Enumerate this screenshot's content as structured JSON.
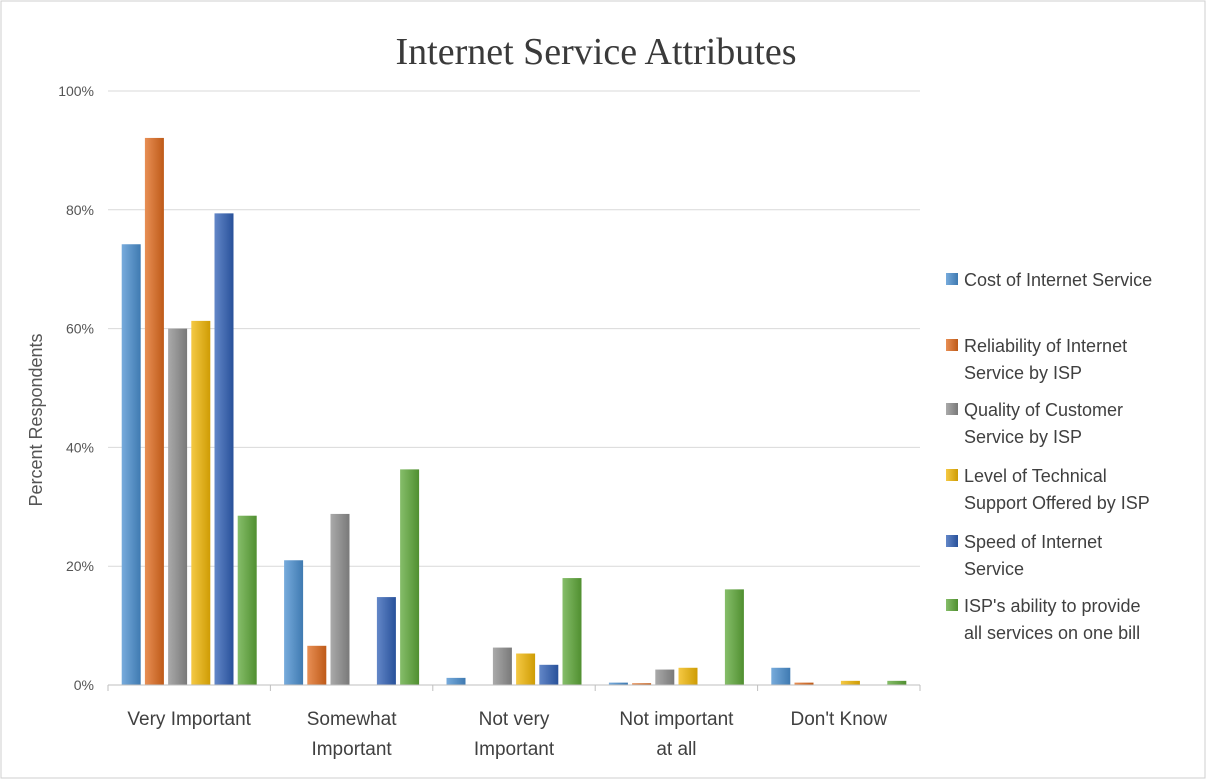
{
  "chart_data": {
    "type": "bar",
    "title": "Internet Service Attributes",
    "xlabel": "",
    "ylabel": "Percent Respondents",
    "ylim": [
      0,
      100
    ],
    "yticks": [
      "0%",
      "20%",
      "40%",
      "60%",
      "80%",
      "100%"
    ],
    "categories": [
      [
        "Very Important"
      ],
      [
        "Somewhat",
        "Important"
      ],
      [
        "Not very",
        "Important"
      ],
      [
        "Not important",
        "at all"
      ],
      [
        "Don't Know"
      ]
    ],
    "series": [
      {
        "name": [
          "Cost of Internet Service"
        ],
        "color": "#4a8fd0",
        "values": [
          74.2,
          21.0,
          1.2,
          0.4,
          2.9
        ]
      },
      {
        "name": [
          "Reliability of Internet",
          "Service by ISP"
        ],
        "color": "#e06a1c",
        "values": [
          92.1,
          6.6,
          0.0,
          0.3,
          0.4
        ]
      },
      {
        "name": [
          "Quality of Customer",
          "Service by ISP"
        ],
        "color": "#8e8e8e",
        "values": [
          60.0,
          28.8,
          6.3,
          2.6,
          0.0
        ]
      },
      {
        "name": [
          "Level of Technical",
          "Support Offered by ISP"
        ],
        "color": "#f2b705",
        "values": [
          61.3,
          0.0,
          5.3,
          2.9,
          0.7
        ]
      },
      {
        "name": [
          "Speed of Internet",
          "Service"
        ],
        "color": "#2f5fb5",
        "values": [
          79.4,
          14.8,
          3.4,
          0.0,
          0.0
        ]
      },
      {
        "name": [
          "ISP's ability to provide",
          "all services on one bill"
        ],
        "color": "#5ea838",
        "values": [
          28.5,
          36.3,
          18.0,
          16.1,
          0.7
        ]
      }
    ],
    "grid": true,
    "legend_position": "right"
  }
}
